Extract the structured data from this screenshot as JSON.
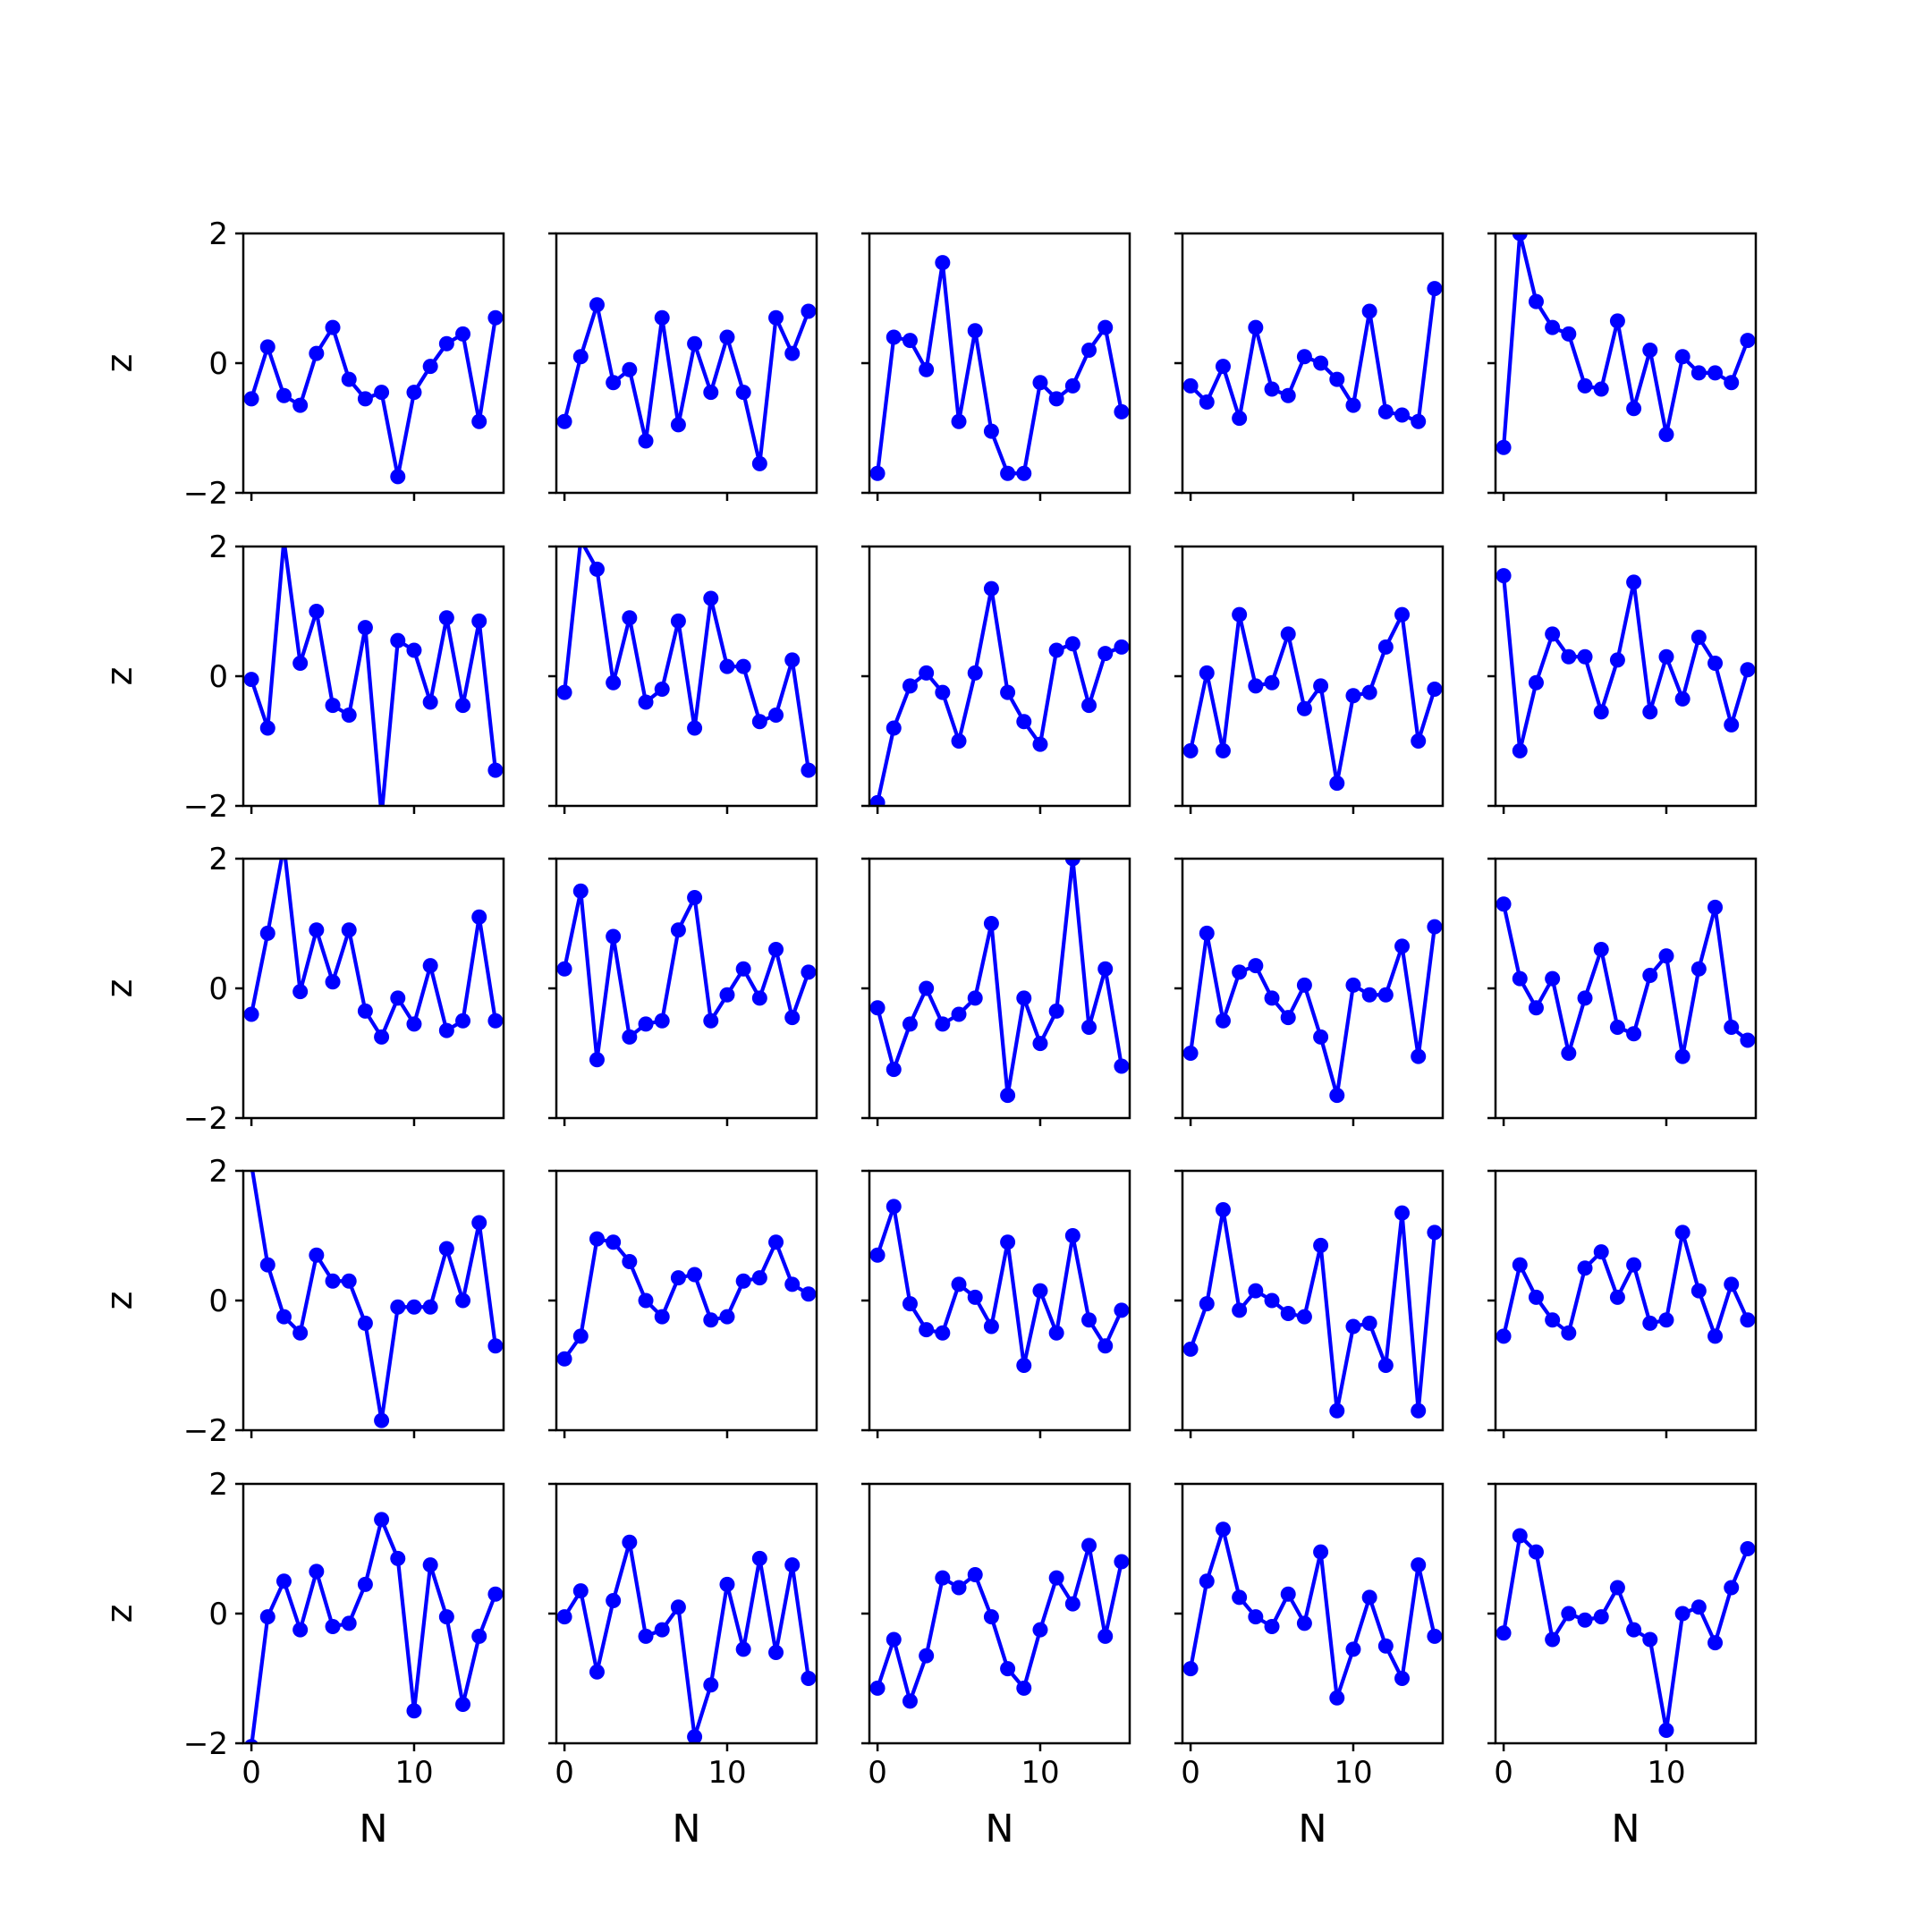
{
  "chart_data": {
    "type": "line",
    "layout": "5x5 grid of subplots, shared axes",
    "line_color": "#0000ff",
    "marker": "circle",
    "grid": false,
    "xlabel": "N",
    "ylabel": "z",
    "xlim": [
      -0.5,
      15.5
    ],
    "ylim": [
      -2,
      2
    ],
    "xticks": [
      0,
      10
    ],
    "yticks": [
      -2,
      0,
      2
    ],
    "x": [
      0,
      1,
      2,
      3,
      4,
      5,
      6,
      7,
      8,
      9,
      10,
      11,
      12,
      13,
      14,
      15
    ],
    "panels": [
      {
        "values": [
          -0.55,
          0.25,
          -0.5,
          -0.65,
          0.15,
          0.55,
          -0.25,
          -0.55,
          -0.45,
          -1.75,
          -0.45,
          -0.05,
          0.3,
          0.45,
          -0.9,
          0.7
        ]
      },
      {
        "values": [
          -0.9,
          0.1,
          0.9,
          -0.3,
          -0.1,
          -1.2,
          0.7,
          -0.95,
          0.3,
          -0.45,
          0.4,
          -0.45,
          -1.55,
          0.7,
          0.15,
          0.8
        ]
      },
      {
        "values": [
          -1.7,
          0.4,
          0.35,
          -0.1,
          1.55,
          -0.9,
          0.5,
          -1.05,
          -1.7,
          -1.7,
          -0.3,
          -0.55,
          -0.35,
          0.2,
          0.55,
          -0.75
        ]
      },
      {
        "values": [
          -0.35,
          -0.6,
          -0.05,
          -0.85,
          0.55,
          -0.4,
          -0.5,
          0.1,
          0.0,
          -0.25,
          -0.65,
          0.8,
          -0.75,
          -0.8,
          -0.9,
          1.15
        ]
      },
      {
        "values": [
          -1.3,
          2.0,
          0.95,
          0.55,
          0.45,
          -0.35,
          -0.4,
          0.65,
          -0.7,
          0.2,
          -1.1,
          0.1,
          -0.15,
          -0.15,
          -0.3,
          0.35
        ]
      },
      {
        "values": [
          -0.05,
          -0.8,
          2.1,
          0.2,
          1.0,
          -0.45,
          -0.6,
          0.75,
          -2.15,
          0.55,
          0.4,
          -0.4,
          0.9,
          -0.45,
          0.85,
          -1.45
        ]
      },
      {
        "values": [
          -0.25,
          2.1,
          1.65,
          -0.1,
          0.9,
          -0.4,
          -0.2,
          0.85,
          -0.8,
          1.2,
          0.15,
          0.15,
          -0.7,
          -0.6,
          0.25,
          -1.45
        ]
      },
      {
        "values": [
          -1.95,
          -0.8,
          -0.15,
          0.05,
          -0.25,
          -1.0,
          0.05,
          1.35,
          -0.25,
          -0.7,
          -1.05,
          0.4,
          0.5,
          -0.45,
          0.35,
          0.45
        ]
      },
      {
        "values": [
          -1.15,
          0.05,
          -1.15,
          0.95,
          -0.15,
          -0.1,
          0.65,
          -0.5,
          -0.15,
          -1.65,
          -0.3,
          -0.25,
          0.45,
          0.95,
          -1.0,
          -0.2
        ]
      },
      {
        "values": [
          1.55,
          -1.15,
          -0.1,
          0.65,
          0.3,
          0.3,
          -0.55,
          0.25,
          1.45,
          -0.55,
          0.3,
          -0.35,
          0.6,
          0.2,
          -0.75,
          0.1
        ]
      },
      {
        "values": [
          -0.4,
          0.85,
          2.2,
          -0.05,
          0.9,
          0.1,
          0.9,
          -0.35,
          -0.75,
          -0.15,
          -0.55,
          0.35,
          -0.65,
          -0.5,
          1.1,
          -0.5
        ]
      },
      {
        "values": [
          0.3,
          1.5,
          -1.1,
          0.8,
          -0.75,
          -0.55,
          -0.5,
          0.9,
          1.4,
          -0.5,
          -0.1,
          0.3,
          -0.15,
          0.6,
          -0.45,
          0.25
        ]
      },
      {
        "values": [
          -0.3,
          -1.25,
          -0.55,
          0.0,
          -0.55,
          -0.4,
          -0.15,
          1.0,
          -1.65,
          -0.15,
          -0.85,
          -0.35,
          2.0,
          -0.6,
          0.3,
          -1.2
        ]
      },
      {
        "values": [
          -1.0,
          0.85,
          -0.5,
          0.25,
          0.35,
          -0.15,
          -0.45,
          0.05,
          -0.75,
          -1.65,
          0.05,
          -0.1,
          -0.1,
          0.65,
          -1.05,
          0.95
        ]
      },
      {
        "values": [
          1.3,
          0.15,
          -0.3,
          0.15,
          -1.0,
          -0.15,
          0.6,
          -0.6,
          -0.7,
          0.2,
          0.5,
          -1.05,
          0.3,
          1.25,
          -0.6,
          -0.8
        ]
      },
      {
        "values": [
          2.1,
          0.55,
          -0.25,
          -0.5,
          0.7,
          0.3,
          0.3,
          -0.35,
          -1.85,
          -0.1,
          -0.1,
          -0.1,
          0.8,
          0.0,
          1.2,
          -0.7
        ]
      },
      {
        "values": [
          -0.9,
          -0.55,
          0.95,
          0.9,
          0.6,
          0.0,
          -0.25,
          0.35,
          0.4,
          -0.3,
          -0.25,
          0.3,
          0.35,
          0.9,
          0.25,
          0.1
        ]
      },
      {
        "values": [
          0.7,
          1.45,
          -0.05,
          -0.45,
          -0.5,
          0.25,
          0.05,
          -0.4,
          0.9,
          -1.0,
          0.15,
          -0.5,
          1.0,
          -0.3,
          -0.7,
          -0.15
        ]
      },
      {
        "values": [
          -0.75,
          -0.05,
          1.4,
          -0.15,
          0.15,
          0.0,
          -0.2,
          -0.25,
          0.85,
          -1.7,
          -0.4,
          -0.35,
          -1.0,
          1.35,
          -1.7,
          1.05
        ]
      },
      {
        "values": [
          -0.55,
          0.55,
          0.05,
          -0.3,
          -0.5,
          0.5,
          0.75,
          0.05,
          0.55,
          -0.35,
          -0.3,
          1.05,
          0.15,
          -0.55,
          0.25,
          -0.3
        ]
      },
      {
        "values": [
          -2.05,
          -0.05,
          0.5,
          -0.25,
          0.65,
          -0.2,
          -0.15,
          0.45,
          1.45,
          0.85,
          -1.5,
          0.75,
          -0.05,
          -1.4,
          -0.35,
          0.3
        ]
      },
      {
        "values": [
          -0.05,
          0.35,
          -0.9,
          0.2,
          1.1,
          -0.35,
          -0.25,
          0.1,
          -1.9,
          -1.1,
          0.45,
          -0.55,
          0.85,
          -0.6,
          0.75,
          -1.0
        ]
      },
      {
        "values": [
          -1.15,
          -0.4,
          -1.35,
          -0.65,
          0.55,
          0.4,
          0.6,
          -0.05,
          -0.85,
          -1.15,
          -0.25,
          0.55,
          0.15,
          1.05,
          -0.35,
          0.8
        ]
      },
      {
        "values": [
          -0.85,
          0.5,
          1.3,
          0.25,
          -0.05,
          -0.2,
          0.3,
          -0.15,
          0.95,
          -1.3,
          -0.55,
          0.25,
          -0.5,
          -1.0,
          0.75,
          -0.35
        ]
      },
      {
        "values": [
          -0.3,
          1.2,
          0.95,
          -0.4,
          0.0,
          -0.1,
          -0.05,
          0.4,
          -0.25,
          -0.4,
          -1.8,
          0.0,
          0.1,
          -0.45,
          0.4,
          1.0
        ]
      }
    ]
  }
}
